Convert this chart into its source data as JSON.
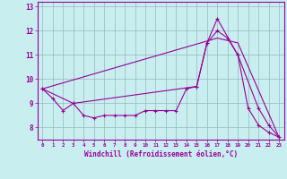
{
  "xlabel": "Windchill (Refroidissement éolien,°C)",
  "xlim": [
    -0.5,
    23.5
  ],
  "ylim": [
    7.5,
    13.2
  ],
  "xticks": [
    0,
    1,
    2,
    3,
    4,
    5,
    6,
    7,
    8,
    9,
    10,
    11,
    12,
    13,
    14,
    15,
    16,
    17,
    18,
    19,
    20,
    21,
    22,
    23
  ],
  "yticks": [
    8,
    9,
    10,
    11,
    12,
    13
  ],
  "bg_color": "#c8eef0",
  "line_color": "#990099",
  "grid_color": "#9ab8bb",
  "series1_x": [
    0,
    1,
    2,
    3,
    4,
    5,
    6,
    7,
    8,
    9,
    10,
    11,
    12,
    13,
    14,
    15,
    16,
    17,
    18,
    19,
    20,
    21,
    22,
    23
  ],
  "series1_y": [
    9.6,
    9.2,
    8.7,
    9.0,
    8.5,
    8.4,
    8.5,
    8.5,
    8.5,
    8.5,
    8.7,
    8.7,
    8.7,
    8.7,
    9.6,
    9.7,
    11.5,
    12.0,
    11.7,
    11.0,
    8.8,
    8.1,
    7.8,
    7.6
  ],
  "series2_x": [
    0,
    3,
    15,
    16,
    17,
    19,
    21,
    22,
    23
  ],
  "series2_y": [
    9.6,
    9.0,
    9.7,
    11.5,
    12.5,
    11.0,
    8.8,
    8.1,
    7.6
  ],
  "series3_x": [
    0,
    17,
    19,
    23
  ],
  "series3_y": [
    9.6,
    11.7,
    11.5,
    7.6
  ]
}
